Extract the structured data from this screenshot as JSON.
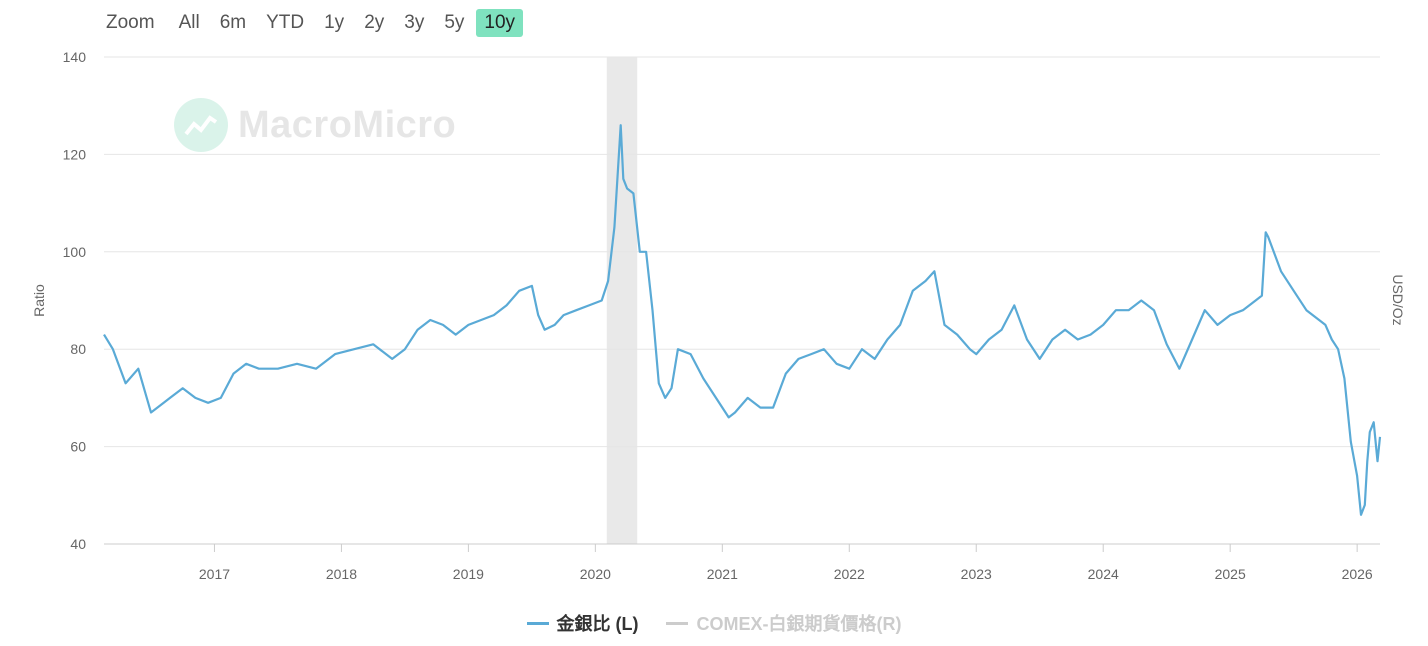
{
  "toolbar": {
    "zoom_label": "Zoom",
    "buttons": [
      "All",
      "6m",
      "YTD",
      "1y",
      "2y",
      "3y",
      "5y",
      "10y"
    ],
    "active": "10y"
  },
  "watermark": "MacroMicro",
  "colors": {
    "series": "#5aaad6",
    "hidden_series": "#cccccc",
    "recession_band": "#e9e9e9",
    "active_zoom": "#7fe2bf",
    "grid": "#e6e6e6"
  },
  "chart_data": {
    "type": "line",
    "ylabel": "Ratio",
    "y2label": "USD/Oz",
    "ylim": [
      40,
      140
    ],
    "yticks": [
      40,
      60,
      80,
      100,
      120,
      140
    ],
    "xlim": [
      2016.13,
      2026.18
    ],
    "xticks": [
      "2017",
      "2018",
      "2019",
      "2020",
      "2021",
      "2022",
      "2023",
      "2024",
      "2025",
      "2026"
    ],
    "shaded_ranges": [
      [
        2020.09,
        2020.33
      ]
    ],
    "grid": true,
    "legend_position": "bottom-center",
    "series": [
      {
        "name": "金銀比 (L)",
        "axis": "left",
        "visible": true,
        "color": "#5aaad6",
        "x": [
          2016.13,
          2016.2,
          2016.3,
          2016.4,
          2016.5,
          2016.6,
          2016.65,
          2016.75,
          2016.85,
          2016.95,
          2017.05,
          2017.15,
          2017.25,
          2017.35,
          2017.5,
          2017.65,
          2017.8,
          2017.95,
          2018.1,
          2018.25,
          2018.4,
          2018.5,
          2018.6,
          2018.7,
          2018.8,
          2018.9,
          2019.0,
          2019.1,
          2019.2,
          2019.3,
          2019.4,
          2019.5,
          2019.55,
          2019.6,
          2019.68,
          2019.75,
          2019.85,
          2019.95,
          2020.05,
          2020.1,
          2020.15,
          2020.2,
          2020.22,
          2020.25,
          2020.3,
          2020.35,
          2020.4,
          2020.45,
          2020.5,
          2020.55,
          2020.6,
          2020.65,
          2020.75,
          2020.85,
          2020.95,
          2021.05,
          2021.1,
          2021.2,
          2021.3,
          2021.4,
          2021.5,
          2021.6,
          2021.7,
          2021.8,
          2021.9,
          2022.0,
          2022.1,
          2022.2,
          2022.3,
          2022.4,
          2022.5,
          2022.6,
          2022.67,
          2022.75,
          2022.85,
          2022.95,
          2023.0,
          2023.1,
          2023.2,
          2023.3,
          2023.4,
          2023.5,
          2023.6,
          2023.7,
          2023.8,
          2023.9,
          2024.0,
          2024.1,
          2024.2,
          2024.3,
          2024.4,
          2024.5,
          2024.6,
          2024.7,
          2024.8,
          2024.9,
          2025.0,
          2025.1,
          2025.2,
          2025.25,
          2025.28,
          2025.3,
          2025.4,
          2025.5,
          2025.6,
          2025.7,
          2025.75,
          2025.8,
          2025.85,
          2025.9,
          2025.95,
          2026.0,
          2026.03,
          2026.06,
          2026.08,
          2026.1,
          2026.13,
          2026.16,
          2026.18
        ],
        "values": [
          83,
          80,
          73,
          76,
          67,
          69,
          70,
          72,
          70,
          69,
          70,
          75,
          77,
          76,
          76,
          77,
          76,
          79,
          80,
          81,
          78,
          80,
          84,
          86,
          85,
          83,
          85,
          86,
          87,
          89,
          92,
          93,
          87,
          84,
          85,
          87,
          88,
          89,
          90,
          94,
          105,
          126,
          115,
          113,
          112,
          100,
          100,
          88,
          73,
          70,
          72,
          80,
          79,
          74,
          70,
          66,
          67,
          70,
          68,
          68,
          75,
          78,
          79,
          80,
          77,
          76,
          80,
          78,
          82,
          85,
          92,
          94,
          96,
          85,
          83,
          80,
          79,
          82,
          84,
          89,
          82,
          78,
          82,
          84,
          82,
          83,
          85,
          88,
          88,
          90,
          88,
          81,
          76,
          82,
          88,
          85,
          87,
          88,
          90,
          91,
          104,
          103,
          96,
          92,
          88,
          86,
          85,
          82,
          80,
          74,
          61,
          54,
          46,
          48,
          57,
          63,
          65,
          57,
          62
        ]
      },
      {
        "name": "COMEX-白銀期貨價格(R)",
        "axis": "right",
        "visible": false,
        "color": "#cccccc"
      }
    ]
  }
}
